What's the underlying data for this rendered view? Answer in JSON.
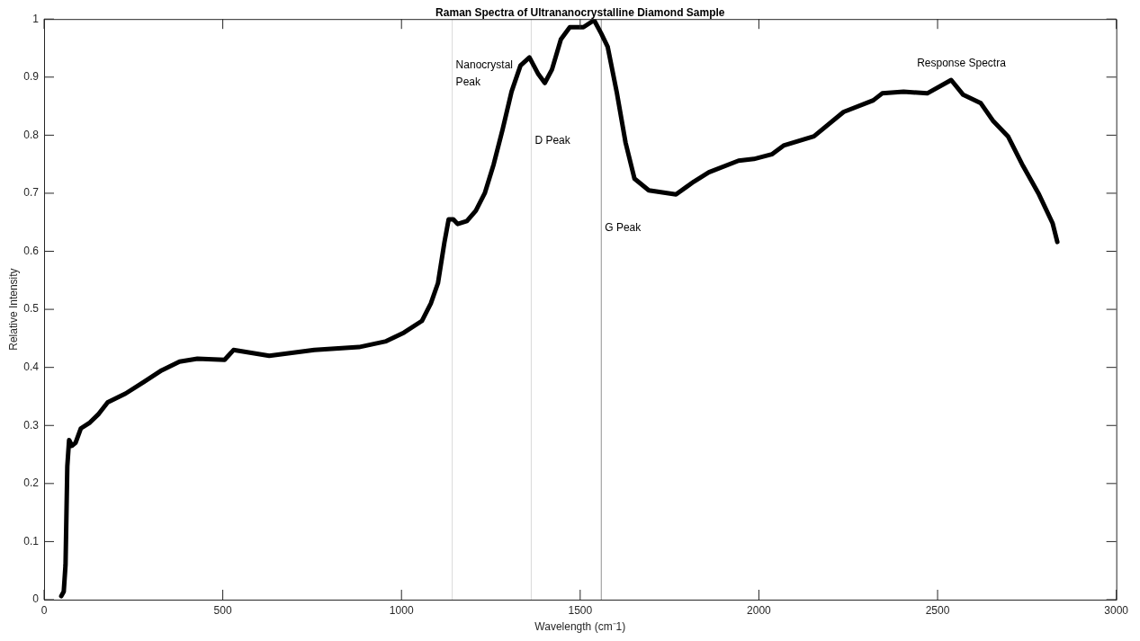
{
  "chart_data": {
    "type": "line",
    "title": "Raman Spectra of Ultrananocrystalline Diamond Sample",
    "xlabel": "Wavelength (cm⁻1)",
    "ylabel": "Relative Intensity",
    "xlim": [
      0,
      3000
    ],
    "xticks": [
      0,
      500,
      1000,
      1500,
      2000,
      2500,
      3000
    ],
    "ylim": [
      0,
      1
    ],
    "yticks": [
      0,
      0.1,
      0.2,
      0.3,
      0.4,
      0.5,
      0.6,
      0.7,
      0.8,
      0.9,
      1
    ],
    "series": [
      {
        "name": "Response Spectra",
        "color": "#000000",
        "x": [
          48,
          55,
          60,
          65,
          70,
          78,
          88,
          103,
          128,
          153,
          178,
          228,
          279,
          329,
          379,
          429,
          505,
          530,
          630,
          756,
          881,
          957,
          1007,
          1057,
          1082,
          1102,
          1120,
          1132,
          1145,
          1157,
          1183,
          1208,
          1233,
          1258,
          1283,
          1308,
          1333,
          1358,
          1383,
          1401,
          1421,
          1446,
          1471,
          1509,
          1539,
          1559,
          1577,
          1602,
          1627,
          1652,
          1692,
          1768,
          1818,
          1860,
          1943,
          1986,
          2036,
          2069,
          2154,
          2237,
          2320,
          2345,
          2405,
          2471,
          2538,
          2571,
          2621,
          2656,
          2697,
          2739,
          2782,
          2822,
          2835
        ],
        "values": [
          0.006,
          0.014,
          0.06,
          0.23,
          0.275,
          0.265,
          0.27,
          0.295,
          0.305,
          0.32,
          0.34,
          0.355,
          0.375,
          0.395,
          0.41,
          0.415,
          0.413,
          0.43,
          0.42,
          0.43,
          0.435,
          0.445,
          0.46,
          0.48,
          0.51,
          0.545,
          0.615,
          0.655,
          0.655,
          0.647,
          0.652,
          0.67,
          0.7,
          0.75,
          0.81,
          0.875,
          0.92,
          0.934,
          0.905,
          0.89,
          0.913,
          0.965,
          0.986,
          0.986,
          0.998,
          0.975,
          0.952,
          0.875,
          0.787,
          0.725,
          0.705,
          0.698,
          0.72,
          0.736,
          0.756,
          0.759,
          0.767,
          0.782,
          0.798,
          0.84,
          0.86,
          0.872,
          0.875,
          0.872,
          0.895,
          0.87,
          0.855,
          0.824,
          0.798,
          0.747,
          0.7,
          0.648,
          0.616
        ]
      }
    ],
    "ref_lines": [
      {
        "axis": "x",
        "value": 1142,
        "label": "Nanocrystal Peak",
        "color": "#d9d9d9"
      },
      {
        "axis": "x",
        "value": 1363,
        "label": "D Peak",
        "color": "#d9d9d9"
      },
      {
        "axis": "x",
        "value": 1559,
        "label": "G Peak",
        "color": "#909090"
      }
    ]
  }
}
